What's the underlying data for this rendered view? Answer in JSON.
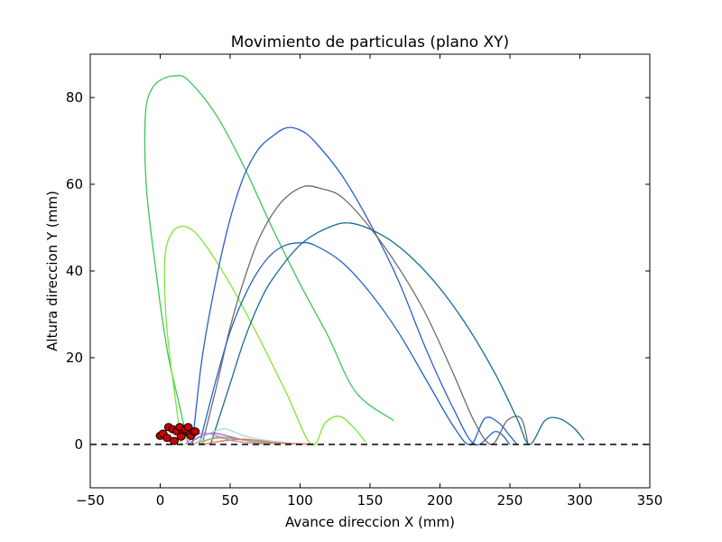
{
  "chart_data": {
    "type": "line",
    "title": "Movimiento de particulas (plano XY)",
    "xlabel": "Avance direccion X (mm)",
    "ylabel": "Altura direccion Y (mm)",
    "xlim": [
      -50,
      350
    ],
    "ylim": [
      -10,
      90
    ],
    "x_ticks": [
      "−50",
      "0",
      "50",
      "100",
      "150",
      "200",
      "250",
      "300",
      "350"
    ],
    "x_tick_values": [
      -50,
      0,
      50,
      100,
      150,
      200,
      250,
      300,
      350
    ],
    "y_ticks": [
      "0",
      "20",
      "40",
      "60",
      "80"
    ],
    "y_tick_values": [
      0,
      20,
      40,
      60,
      80
    ],
    "grid": false,
    "legend": "none",
    "reference_line": {
      "y": 0,
      "style": "dashed",
      "color": "#000000"
    },
    "series": [
      {
        "color": "#3cc55a",
        "x": [
          20,
          13,
          6,
          1,
          -3,
          -7,
          -10,
          -11,
          -10,
          -6,
          0,
          10,
          20,
          40,
          60,
          80,
          100,
          120,
          140,
          167
        ],
        "y": [
          0,
          10,
          20,
          30,
          40,
          50,
          60,
          70,
          78,
          82,
          84,
          85,
          84,
          76,
          64,
          50,
          37,
          25,
          12,
          5.5
        ]
      },
      {
        "color": "#7ce832",
        "x": [
          15,
          11,
          7,
          4,
          3,
          4,
          7,
          12,
          20,
          30,
          50,
          70,
          90,
          108,
          118,
          128,
          138,
          147
        ],
        "y": [
          0,
          10,
          20,
          30,
          40,
          45,
          48,
          50,
          50,
          47,
          37,
          25,
          12,
          0,
          5,
          6.5,
          4,
          0.5
        ]
      },
      {
        "color": "#2a5fcc",
        "x": [
          23,
          30,
          40,
          50,
          60,
          70,
          80,
          90,
          100,
          110,
          130,
          150,
          170,
          190,
          210,
          225,
          240,
          250
        ],
        "y": [
          0,
          20,
          38,
          52,
          62,
          68,
          71,
          73,
          72.5,
          70,
          62,
          51,
          38,
          22,
          8,
          0,
          3,
          0
        ]
      },
      {
        "color": "#6c6c6c",
        "x": [
          30,
          40,
          50,
          60,
          70,
          80,
          90,
          103,
          115,
          130,
          150,
          170,
          190,
          210,
          225,
          237,
          248,
          258,
          263
        ],
        "y": [
          0,
          13,
          27,
          38,
          47,
          53,
          57,
          59.5,
          59,
          57,
          50,
          41,
          30,
          16,
          5,
          0,
          5.5,
          6,
          0
        ]
      },
      {
        "color": "#2664c0",
        "x": [
          28,
          40,
          50,
          60,
          70,
          80,
          90,
          100,
          110,
          130,
          150,
          170,
          190,
          210,
          222,
          232,
          242,
          250,
          255
        ],
        "y": [
          0,
          15,
          26,
          34,
          40,
          44,
          46,
          46.5,
          46,
          42,
          35,
          26,
          15,
          4,
          0,
          6,
          5,
          2,
          0
        ]
      },
      {
        "color": "#176c96",
        "x": [
          36,
          50,
          60,
          70,
          80,
          100,
          120,
          137,
          160,
          180,
          200,
          220,
          240,
          255,
          264,
          275,
          285,
          295,
          303
        ],
        "y": [
          0,
          14,
          24,
          32,
          38,
          46,
          50,
          51,
          48,
          43,
          36,
          27,
          16,
          6,
          0,
          5.5,
          6,
          4,
          1
        ]
      },
      {
        "color": "#9b59d0",
        "x": [
          20,
          26,
          32,
          38,
          45,
          52,
          60,
          70,
          80
        ],
        "y": [
          0,
          1.4,
          2.2,
          2.6,
          2.2,
          1.6,
          1.0,
          0.5,
          0.2
        ]
      },
      {
        "color": "#a8d8e8",
        "x": [
          25,
          32,
          40,
          46,
          52,
          60,
          70,
          85,
          95
        ],
        "y": [
          0,
          2.0,
          3.2,
          3.6,
          3.0,
          2.0,
          1.2,
          0.6,
          0.2
        ]
      },
      {
        "color": "#d2b48c",
        "x": [
          22,
          30,
          40,
          50,
          60,
          70,
          85,
          100
        ],
        "y": [
          0,
          0.8,
          1.4,
          1.4,
          1.0,
          0.6,
          0.3,
          0.1
        ]
      },
      {
        "color": "#8fbc55",
        "x": [
          28,
          35,
          42,
          50,
          60,
          70,
          85
        ],
        "y": [
          0,
          1.2,
          1.7,
          1.5,
          1.0,
          0.5,
          0.2
        ]
      },
      {
        "color": "#e07060",
        "x": [
          30,
          40,
          50,
          60,
          70,
          80,
          95,
          110
        ],
        "y": [
          0,
          0.6,
          1.0,
          1.2,
          0.9,
          0.5,
          0.2,
          0.1
        ]
      },
      {
        "color": "#c080c0",
        "x": [
          18,
          24,
          30,
          36,
          42,
          50,
          60,
          75
        ],
        "y": [
          0,
          1.8,
          2.6,
          2.4,
          1.8,
          1.0,
          0.5,
          0.1
        ]
      }
    ],
    "particles": {
      "color": "#cc0000",
      "stroke": "#000000",
      "x": [
        0,
        2,
        6,
        9,
        12,
        14,
        16,
        18,
        20,
        22,
        24,
        25,
        5,
        15,
        10
      ],
      "y": [
        2,
        2.5,
        4,
        3.5,
        3,
        4,
        2.5,
        3.5,
        4,
        2,
        3,
        3,
        1.5,
        1.8,
        0.8
      ]
    }
  }
}
